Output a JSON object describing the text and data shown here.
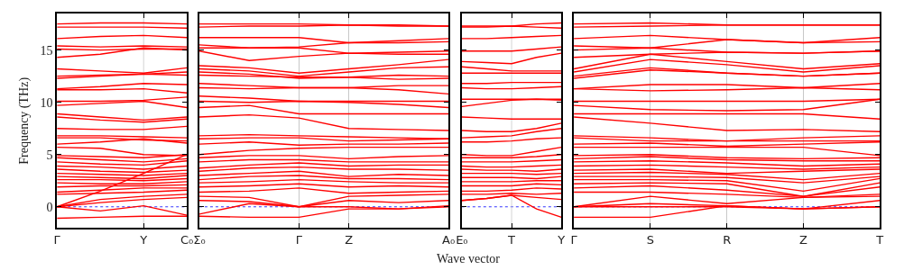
{
  "chart_data": [
    {
      "type": "line",
      "ylabel": "Frequency (THz)",
      "ylim": [
        -2,
        18.5
      ],
      "yticks": [
        0,
        5,
        10,
        15
      ],
      "categories": [
        "Γ",
        null,
        "Y",
        "C₀"
      ],
      "ref_lines": [
        {
          "axis": "y",
          "value": 0,
          "color": "#0000ff",
          "line_style": "dotted"
        },
        {
          "axis": "x",
          "value": "Y",
          "color": "#c8c8c8",
          "line_style": "solid"
        }
      ],
      "series": [
        {
          "color": "#ff0000",
          "values": [
            17.5,
            17.6,
            17.6,
            17.5
          ]
        },
        {
          "color": "#ff0000",
          "values": [
            17.2,
            17.2,
            17.2,
            17.1
          ]
        },
        {
          "color": "#ff0000",
          "values": [
            16.1,
            16.3,
            16.4,
            16.2
          ]
        },
        {
          "color": "#ff0000",
          "values": [
            15.4,
            15.3,
            15.4,
            15.3
          ]
        },
        {
          "color": "#ff0000",
          "values": [
            15.1,
            15.0,
            15.1,
            15.1
          ]
        },
        {
          "color": "#ff0000",
          "values": [
            14.3,
            14.6,
            15.2,
            15.0
          ]
        },
        {
          "color": "#ff0000",
          "values": [
            13.2,
            13.0,
            12.8,
            13.3
          ]
        },
        {
          "color": "#ff0000",
          "values": [
            12.5,
            12.6,
            12.7,
            12.9
          ]
        },
        {
          "color": "#ff0000",
          "values": [
            12.3,
            12.5,
            12.7,
            12.6
          ]
        },
        {
          "color": "#ff0000",
          "values": [
            11.3,
            11.5,
            11.8,
            11.7
          ]
        },
        {
          "color": "#ff0000",
          "values": [
            11.2,
            11.2,
            11.3,
            10.9
          ]
        },
        {
          "color": "#ff0000",
          "values": [
            10.1,
            10.1,
            10.2,
            10.5
          ]
        },
        {
          "color": "#ff0000",
          "values": [
            9.7,
            9.9,
            10.1,
            9.5
          ]
        },
        {
          "color": "#ff0000",
          "values": [
            8.9,
            8.6,
            8.3,
            8.6
          ]
        },
        {
          "color": "#ff0000",
          "values": [
            8.6,
            8.3,
            8.1,
            8.4
          ]
        },
        {
          "color": "#ff0000",
          "values": [
            7.5,
            7.4,
            7.4,
            7.7
          ]
        },
        {
          "color": "#ff0000",
          "values": [
            6.8,
            6.8,
            6.7,
            6.6
          ]
        },
        {
          "color": "#ff0000",
          "values": [
            6.6,
            6.6,
            6.4,
            6.3
          ]
        },
        {
          "color": "#ff0000",
          "values": [
            6.0,
            6.2,
            6.5,
            6.1
          ]
        },
        {
          "color": "#ff0000",
          "values": [
            5.7,
            5.6,
            5.0,
            4.9
          ]
        },
        {
          "color": "#ff0000",
          "values": [
            4.9,
            4.8,
            4.7,
            5.0
          ]
        },
        {
          "color": "#ff0000",
          "values": [
            4.7,
            4.5,
            4.3,
            4.6
          ]
        },
        {
          "color": "#ff0000",
          "values": [
            4.3,
            4.1,
            4.0,
            4.4
          ]
        },
        {
          "color": "#ff0000",
          "values": [
            3.9,
            3.8,
            3.6,
            3.9
          ]
        },
        {
          "color": "#ff0000",
          "values": [
            3.6,
            3.4,
            3.3,
            3.5
          ]
        },
        {
          "color": "#ff0000",
          "values": [
            3.2,
            3.1,
            3.0,
            3.2
          ]
        },
        {
          "color": "#ff0000",
          "values": [
            2.9,
            2.8,
            2.7,
            3.0
          ]
        },
        {
          "color": "#ff0000",
          "values": [
            2.6,
            2.6,
            2.5,
            2.7
          ]
        },
        {
          "color": "#ff0000",
          "values": [
            2.3,
            2.2,
            2.2,
            2.4
          ]
        },
        {
          "color": "#ff0000",
          "values": [
            1.9,
            2.0,
            2.0,
            2.1
          ]
        },
        {
          "color": "#ff0000",
          "values": [
            1.4,
            1.6,
            1.8,
            1.8
          ]
        },
        {
          "color": "#ff0000",
          "values": [
            1.2,
            1.3,
            1.4,
            1.6
          ]
        },
        {
          "color": "#ff0000",
          "values": [
            0,
            1.5,
            3.2,
            5.0
          ]
        },
        {
          "color": "#ff0000",
          "values": [
            0,
            0.7,
            1.0,
            1.2
          ]
        },
        {
          "color": "#ff0000",
          "values": [
            0,
            0.4,
            0.7,
            0.9
          ]
        },
        {
          "color": "#ff0000",
          "values": [
            0,
            -0.4,
            0.1,
            -0.8
          ]
        },
        {
          "color": "#ff0000",
          "values": [
            -1.1,
            -1.0,
            -0.9,
            -0.9
          ]
        }
      ]
    },
    {
      "type": "line",
      "xlabel": "Wave vector",
      "ylim": [
        -2,
        18.5
      ],
      "yticks": [
        0,
        5,
        10,
        15
      ],
      "categories": [
        "Σ₀",
        null,
        "Γ",
        "Z",
        null,
        "A₀"
      ],
      "grid": "x",
      "tick_labels": "x",
      "ref_lines": [
        {
          "axis": "y",
          "value": 0,
          "color": "#0000ff",
          "line_style": "dotted"
        }
      ],
      "series": [
        {
          "color": "#ff0000",
          "values": [
            17.5,
            17.5,
            17.5,
            17.4,
            17.4,
            17.3
          ]
        },
        {
          "color": "#ff0000",
          "values": [
            17.2,
            17.3,
            17.3,
            17.4,
            17.3,
            17.3
          ]
        },
        {
          "color": "#ff0000",
          "values": [
            16.2,
            16.2,
            16.2,
            15.7,
            15.9,
            16.1
          ]
        },
        {
          "color": "#ff0000",
          "values": [
            15.5,
            15.2,
            15.3,
            15.7,
            15.7,
            15.8
          ]
        },
        {
          "color": "#ff0000",
          "values": [
            15.2,
            15.2,
            15.2,
            14.7,
            14.8,
            14.9
          ]
        },
        {
          "color": "#ff0000",
          "values": [
            14.9,
            14.0,
            14.4,
            14.7,
            14.6,
            14.6
          ]
        },
        {
          "color": "#ff0000",
          "values": [
            13.5,
            13.3,
            12.8,
            13.2,
            13.6,
            14.1
          ]
        },
        {
          "color": "#ff0000",
          "values": [
            13.2,
            13.0,
            12.5,
            12.9,
            13.3,
            13.4
          ]
        },
        {
          "color": "#ff0000",
          "values": [
            12.9,
            12.7,
            12.3,
            12.4,
            12.6,
            12.5
          ]
        },
        {
          "color": "#ff0000",
          "values": [
            12.6,
            12.5,
            12.4,
            12.4,
            12.2,
            12.3
          ]
        },
        {
          "color": "#ff0000",
          "values": [
            11.8,
            11.6,
            11.4,
            11.4,
            11.6,
            11.6
          ]
        },
        {
          "color": "#ff0000",
          "values": [
            11.4,
            11.3,
            11.4,
            11.4,
            11.2,
            10.8
          ]
        },
        {
          "color": "#ff0000",
          "values": [
            10.6,
            10.4,
            10.1,
            10.1,
            10.1,
            10.1
          ]
        },
        {
          "color": "#ff0000",
          "values": [
            10.1,
            10.0,
            10.1,
            10.0,
            9.8,
            9.5
          ]
        },
        {
          "color": "#ff0000",
          "values": [
            9.5,
            9.7,
            8.9,
            8.9,
            8.9,
            8.9
          ]
        },
        {
          "color": "#ff0000",
          "values": [
            8.6,
            8.8,
            8.5,
            7.5,
            7.4,
            7.3
          ]
        },
        {
          "color": "#ff0000",
          "values": [
            6.8,
            6.9,
            6.8,
            6.7,
            6.6,
            6.5
          ]
        },
        {
          "color": "#ff0000",
          "values": [
            6.5,
            6.6,
            6.6,
            6.3,
            6.4,
            6.5
          ]
        },
        {
          "color": "#ff0000",
          "values": [
            6.0,
            6.2,
            5.9,
            6.0,
            6.0,
            6.1
          ]
        },
        {
          "color": "#ff0000",
          "values": [
            5.0,
            5.4,
            5.6,
            5.7,
            5.7,
            5.7
          ]
        },
        {
          "color": "#ff0000",
          "values": [
            4.7,
            4.9,
            4.9,
            4.6,
            4.8,
            4.9
          ]
        },
        {
          "color": "#ff0000",
          "values": [
            4.3,
            4.5,
            4.5,
            4.3,
            4.3,
            4.3
          ]
        },
        {
          "color": "#ff0000",
          "values": [
            3.7,
            4.0,
            4.2,
            3.9,
            4.0,
            4.0
          ]
        },
        {
          "color": "#ff0000",
          "values": [
            3.4,
            3.7,
            3.8,
            3.6,
            3.6,
            3.5
          ]
        },
        {
          "color": "#ff0000",
          "values": [
            3.0,
            3.2,
            3.4,
            2.9,
            3.1,
            3.0
          ]
        },
        {
          "color": "#ff0000",
          "values": [
            2.6,
            2.9,
            3.0,
            2.7,
            2.7,
            2.6
          ]
        },
        {
          "color": "#ff0000",
          "values": [
            2.3,
            2.4,
            2.6,
            2.4,
            2.3,
            2.3
          ]
        },
        {
          "color": "#ff0000",
          "values": [
            1.9,
            2.0,
            2.2,
            1.9,
            2.0,
            1.9
          ]
        },
        {
          "color": "#ff0000",
          "values": [
            1.4,
            1.5,
            1.8,
            1.3,
            1.4,
            1.5
          ]
        },
        {
          "color": "#ff0000",
          "values": [
            1.0,
            0.9,
            0,
            1.0,
            1.1,
            1.2
          ]
        },
        {
          "color": "#ff0000",
          "values": [
            0.6,
            0.5,
            0,
            0.6,
            0.4,
            0.6
          ]
        },
        {
          "color": "#ff0000",
          "values": [
            -0.7,
            0.3,
            0,
            0,
            -0.2,
            0
          ]
        },
        {
          "color": "#ff0000",
          "values": [
            -0.9,
            -1.0,
            -1.0,
            -0.2,
            -0.2,
            0.1
          ]
        }
      ]
    },
    {
      "type": "line",
      "ylim": [
        -2,
        18.5
      ],
      "yticks": [
        0,
        5,
        10,
        15
      ],
      "categories": [
        "E₀",
        null,
        "T",
        null,
        "Y"
      ],
      "tick_labels": "x",
      "ref_lines": [
        {
          "axis": "y",
          "value": 0,
          "color": "#0000ff",
          "line_style": "dotted"
        },
        {
          "axis": "x",
          "value": "T",
          "color": "#c8c8c8",
          "line_style": "solid"
        }
      ],
      "series": [
        {
          "color": "#ff0000",
          "values": [
            17.3,
            17.3,
            17.3,
            17.5,
            17.6
          ]
        },
        {
          "color": "#ff0000",
          "values": [
            17.2,
            17.2,
            17.3,
            17.2,
            17.1
          ]
        },
        {
          "color": "#ff0000",
          "values": [
            16.1,
            16.1,
            16.2,
            16.3,
            16.4
          ]
        },
        {
          "color": "#ff0000",
          "values": [
            14.9,
            14.9,
            14.9,
            15.1,
            15.3
          ]
        },
        {
          "color": "#ff0000",
          "values": [
            13.9,
            13.8,
            13.7,
            14.3,
            14.7
          ]
        },
        {
          "color": "#ff0000",
          "values": [
            13.4,
            13.2,
            13.0,
            13.0,
            13.0
          ]
        },
        {
          "color": "#ff0000",
          "values": [
            12.8,
            12.8,
            12.8,
            12.8,
            12.8
          ]
        },
        {
          "color": "#ff0000",
          "values": [
            11.8,
            11.8,
            11.9,
            11.9,
            11.9
          ]
        },
        {
          "color": "#ff0000",
          "values": [
            11.4,
            11.3,
            11.3,
            11.4,
            11.5
          ]
        },
        {
          "color": "#ff0000",
          "values": [
            10.3,
            10.3,
            10.3,
            10.3,
            10.3
          ]
        },
        {
          "color": "#ff0000",
          "values": [
            9.6,
            9.9,
            10.2,
            10.3,
            10.2
          ]
        },
        {
          "color": "#ff0000",
          "values": [
            8.6,
            8.5,
            8.4,
            8.4,
            8.4
          ]
        },
        {
          "color": "#ff0000",
          "values": [
            7.3,
            7.2,
            7.2,
            7.5,
            8.0
          ]
        },
        {
          "color": "#ff0000",
          "values": [
            6.6,
            6.7,
            6.8,
            7.2,
            7.5
          ]
        },
        {
          "color": "#ff0000",
          "values": [
            6.2,
            6.2,
            6.3,
            6.5,
            6.6
          ]
        },
        {
          "color": "#ff0000",
          "values": [
            5.0,
            4.9,
            4.9,
            5.3,
            5.7
          ]
        },
        {
          "color": "#ff0000",
          "values": [
            4.7,
            4.7,
            4.7,
            4.8,
            5.0
          ]
        },
        {
          "color": "#ff0000",
          "values": [
            4.3,
            4.3,
            4.3,
            4.4,
            4.5
          ]
        },
        {
          "color": "#ff0000",
          "values": [
            3.9,
            3.8,
            3.8,
            3.9,
            4.0
          ]
        },
        {
          "color": "#ff0000",
          "values": [
            3.6,
            3.5,
            3.5,
            3.4,
            3.6
          ]
        },
        {
          "color": "#ff0000",
          "values": [
            3.2,
            3.2,
            3.2,
            3.1,
            3.2
          ]
        },
        {
          "color": "#ff0000",
          "values": [
            2.8,
            2.8,
            2.8,
            2.7,
            2.9
          ]
        },
        {
          "color": "#ff0000",
          "values": [
            2.4,
            2.4,
            2.4,
            2.5,
            2.5
          ]
        },
        {
          "color": "#ff0000",
          "values": [
            2.0,
            2.0,
            2.0,
            2.2,
            2.1
          ]
        },
        {
          "color": "#ff0000",
          "values": [
            1.5,
            1.5,
            1.6,
            1.8,
            1.7
          ]
        },
        {
          "color": "#ff0000",
          "values": [
            1.2,
            1.2,
            1.3,
            1.2,
            1.3
          ]
        },
        {
          "color": "#ff0000",
          "values": [
            0.6,
            0.8,
            1.1,
            0.9,
            0.7
          ]
        },
        {
          "color": "#ff0000",
          "values": [
            0.6,
            0.8,
            1.1,
            -0.2,
            -1.0
          ]
        }
      ]
    },
    {
      "type": "line",
      "ylim": [
        -2,
        18.5
      ],
      "yticks": [
        0,
        5,
        10,
        15
      ],
      "categories": [
        "Γ",
        "S",
        "R",
        "Z",
        "T"
      ],
      "grid": "x",
      "tick_labels": "x",
      "ref_lines": [
        {
          "axis": "y",
          "value": 0,
          "color": "#0000ff",
          "line_style": "dotted"
        }
      ],
      "series": [
        {
          "color": "#ff0000",
          "values": [
            17.5,
            17.6,
            17.4,
            17.4,
            17.4
          ]
        },
        {
          "color": "#ff0000",
          "values": [
            17.2,
            17.3,
            17.4,
            17.4,
            17.4
          ]
        },
        {
          "color": "#ff0000",
          "values": [
            16.1,
            16.4,
            16.0,
            15.7,
            16.2
          ]
        },
        {
          "color": "#ff0000",
          "values": [
            15.4,
            15.2,
            16.0,
            15.7,
            15.8
          ]
        },
        {
          "color": "#ff0000",
          "values": [
            15.0,
            15.2,
            14.8,
            14.7,
            14.9
          ]
        },
        {
          "color": "#ff0000",
          "values": [
            14.3,
            14.6,
            14.8,
            14.7,
            14.9
          ]
        },
        {
          "color": "#ff0000",
          "values": [
            13.2,
            14.6,
            13.9,
            13.2,
            13.7
          ]
        },
        {
          "color": "#ff0000",
          "values": [
            12.9,
            14.1,
            13.6,
            12.9,
            13.5
          ]
        },
        {
          "color": "#ff0000",
          "values": [
            12.5,
            13.3,
            12.8,
            12.5,
            12.8
          ]
        },
        {
          "color": "#ff0000",
          "values": [
            12.3,
            13.1,
            12.8,
            12.5,
            12.8
          ]
        },
        {
          "color": "#ff0000",
          "values": [
            11.3,
            11.7,
            11.7,
            11.4,
            11.8
          ]
        },
        {
          "color": "#ff0000",
          "values": [
            11.3,
            11.1,
            11.2,
            11.4,
            11.2
          ]
        },
        {
          "color": "#ff0000",
          "values": [
            10.1,
            10.1,
            10.1,
            10.1,
            10.3
          ]
        },
        {
          "color": "#ff0000",
          "values": [
            9.7,
            9.3,
            9.2,
            9.3,
            10.3
          ]
        },
        {
          "color": "#ff0000",
          "values": [
            8.9,
            8.9,
            8.9,
            8.9,
            8.4
          ]
        },
        {
          "color": "#ff0000",
          "values": [
            8.6,
            8.0,
            7.3,
            7.4,
            7.2
          ]
        },
        {
          "color": "#ff0000",
          "values": [
            6.8,
            6.6,
            6.3,
            6.6,
            6.8
          ]
        },
        {
          "color": "#ff0000",
          "values": [
            6.6,
            6.3,
            6.3,
            6.3,
            6.3
          ]
        },
        {
          "color": "#ff0000",
          "values": [
            6.0,
            6.1,
            5.8,
            6.0,
            6.2
          ]
        },
        {
          "color": "#ff0000",
          "values": [
            5.7,
            5.7,
            5.7,
            5.7,
            4.9
          ]
        },
        {
          "color": "#ff0000",
          "values": [
            4.9,
            5.0,
            4.7,
            4.6,
            4.7
          ]
        },
        {
          "color": "#ff0000",
          "values": [
            4.6,
            4.8,
            4.5,
            4.4,
            4.4
          ]
        },
        {
          "color": "#ff0000",
          "values": [
            4.3,
            4.4,
            4.2,
            3.9,
            4.1
          ]
        },
        {
          "color": "#ff0000",
          "values": [
            3.9,
            4.0,
            3.8,
            3.6,
            3.8
          ]
        },
        {
          "color": "#ff0000",
          "values": [
            3.5,
            3.6,
            3.2,
            3.4,
            3.6
          ]
        },
        {
          "color": "#ff0000",
          "values": [
            3.2,
            3.3,
            3.1,
            2.6,
            3.2
          ]
        },
        {
          "color": "#ff0000",
          "values": [
            2.9,
            2.9,
            2.8,
            2.3,
            2.9
          ]
        },
        {
          "color": "#ff0000",
          "values": [
            2.6,
            2.6,
            2.5,
            1.5,
            2.7
          ]
        },
        {
          "color": "#ff0000",
          "values": [
            2.2,
            2.3,
            2.2,
            1.0,
            2.3
          ]
        },
        {
          "color": "#ff0000",
          "values": [
            1.8,
            2.0,
            1.6,
            1.0,
            1.9
          ]
        },
        {
          "color": "#ff0000",
          "values": [
            1.4,
            1.4,
            1.2,
            0.9,
            1.2
          ]
        },
        {
          "color": "#ff0000",
          "values": [
            0,
            1.0,
            0.3,
            0.9,
            1.0
          ]
        },
        {
          "color": "#ff0000",
          "values": [
            0,
            0.3,
            0.1,
            -0.2,
            0.6
          ]
        },
        {
          "color": "#ff0000",
          "values": [
            0,
            0,
            0,
            -0.2,
            0
          ]
        },
        {
          "color": "#ff0000",
          "values": [
            -1.0,
            -1.0,
            0.1,
            -0.2,
            0
          ]
        }
      ]
    }
  ]
}
